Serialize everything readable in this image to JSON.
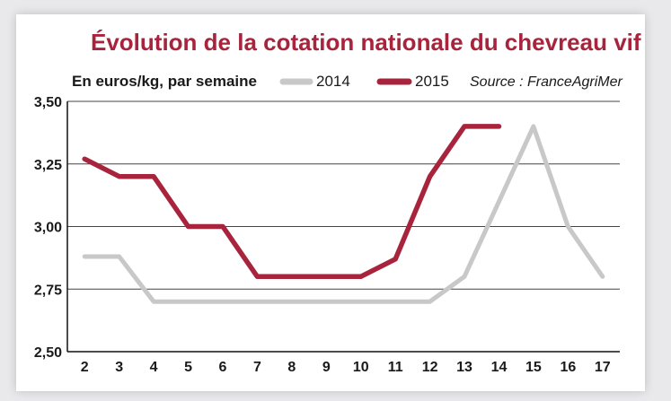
{
  "chart_data": {
    "type": "line",
    "title": "Évolution de la cotation nationale du chevreau vif",
    "unit_label": "En euros/kg, par semaine",
    "source": "Source : FranceAgriMer",
    "x": [
      2,
      3,
      4,
      5,
      6,
      7,
      8,
      9,
      10,
      11,
      12,
      13,
      14,
      15,
      16,
      17
    ],
    "x_tick_labels": [
      "2",
      "3",
      "4",
      "5",
      "6",
      "7",
      "8",
      "9",
      "10",
      "11",
      "12",
      "13",
      "14",
      "15",
      "16",
      "17"
    ],
    "ylim": [
      2.5,
      3.5
    ],
    "y_ticks": [
      2.5,
      2.75,
      3.0,
      3.25,
      3.5
    ],
    "y_tick_labels": [
      "2,50",
      "2,75",
      "3,00",
      "3,25",
      "3,50"
    ],
    "grid": "horizontal",
    "legend_position": "top",
    "series": [
      {
        "name": "2014",
        "color": "#c8c8c8",
        "x": [
          2,
          3,
          4,
          5,
          6,
          7,
          8,
          9,
          10,
          11,
          12,
          13,
          14,
          15,
          16,
          17
        ],
        "values": [
          2.88,
          2.88,
          2.7,
          2.7,
          2.7,
          2.7,
          2.7,
          2.7,
          2.7,
          2.7,
          2.7,
          2.8,
          3.1,
          3.4,
          3.0,
          2.8
        ]
      },
      {
        "name": "2015",
        "color": "#a8243c",
        "x": [
          2,
          3,
          4,
          5,
          6,
          7,
          8,
          9,
          10,
          11,
          12,
          13,
          14
        ],
        "values": [
          3.27,
          3.2,
          3.2,
          3.0,
          3.0,
          2.8,
          2.8,
          2.8,
          2.8,
          2.87,
          3.2,
          3.4,
          3.4
        ]
      }
    ]
  }
}
